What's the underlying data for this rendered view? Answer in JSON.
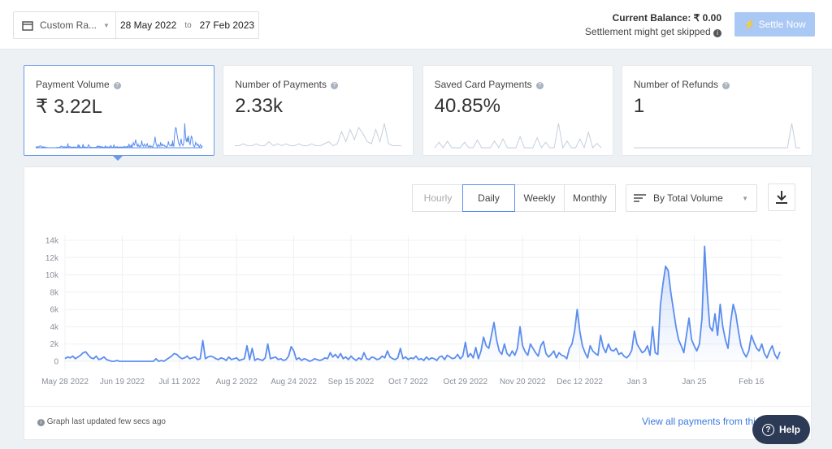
{
  "header": {
    "range_select": "Custom Ra...",
    "from": "28 May 2022",
    "to_word": "to",
    "to": "27 Feb 2023",
    "balance_label": "Current Balance:",
    "balance_value": "₹ 0.00",
    "note": "Settlement might get skipped",
    "button": "Settle Now"
  },
  "cards": [
    {
      "label": "Payment Volume",
      "value": "₹ 3.22L"
    },
    {
      "label": "Number of Payments",
      "value": "2.33k",
      "sparkline": [
        1,
        1,
        2,
        1,
        1,
        2,
        1,
        1,
        3,
        1,
        2,
        1,
        2,
        1,
        1,
        2,
        1,
        1,
        2,
        1,
        1,
        2,
        3,
        1,
        2,
        8,
        3,
        9,
        4,
        10,
        7,
        3,
        2,
        9,
        3,
        12,
        2,
        1,
        1,
        1
      ]
    },
    {
      "label": "Saved Card Payments",
      "value": "40.85%",
      "sparkline": [
        0,
        5,
        0,
        6,
        0,
        0,
        0,
        5,
        0,
        0,
        7,
        0,
        0,
        0,
        6,
        0,
        8,
        0,
        0,
        0,
        10,
        0,
        0,
        0,
        9,
        0,
        5,
        0,
        0,
        22,
        0,
        6,
        0,
        0,
        8,
        0,
        14,
        0,
        4,
        0
      ]
    },
    {
      "label": "Number of Refunds",
      "value": "1",
      "sparkline": [
        0,
        0,
        0,
        0,
        0,
        0,
        0,
        0,
        0,
        0,
        0,
        0,
        0,
        0,
        0,
        0,
        0,
        0,
        0,
        0,
        0,
        0,
        0,
        0,
        0,
        0,
        0,
        0,
        0,
        0,
        0,
        0,
        0,
        0,
        0,
        0,
        0,
        1,
        0,
        0
      ]
    }
  ],
  "toolbar": {
    "granularity": [
      "Hourly",
      "Daily",
      "Weekly",
      "Monthly"
    ],
    "sort": "By Total Volume"
  },
  "chart_data": {
    "type": "line",
    "color": "#5b8def",
    "grid": true,
    "ylim": [
      0,
      14000
    ],
    "yticks": [
      0,
      {
        "value": 2000,
        "label": "2k"
      },
      {
        "value": 4000,
        "label": "4k"
      },
      {
        "value": 6000,
        "label": "6k"
      },
      {
        "value": 8000,
        "label": "8k"
      },
      {
        "value": 10000,
        "label": "10k"
      },
      {
        "value": 12000,
        "label": "12k"
      },
      {
        "value": 14000,
        "label": "14k"
      }
    ],
    "categories": [
      "May 28 2022",
      null,
      null,
      null,
      null,
      null,
      null,
      null,
      null,
      null,
      null,
      null,
      null,
      null,
      null,
      null,
      null,
      null,
      null,
      null,
      null,
      null,
      "Jun 19 2022",
      null,
      null,
      null,
      null,
      null,
      null,
      null,
      null,
      null,
      null,
      null,
      null,
      null,
      null,
      null,
      null,
      null,
      null,
      null,
      null,
      null,
      "Jul 11 2022",
      null,
      null,
      null,
      null,
      null,
      null,
      null,
      null,
      null,
      null,
      null,
      null,
      null,
      null,
      null,
      null,
      null,
      null,
      null,
      null,
      null,
      "Aug 2 2022",
      null,
      null,
      null,
      null,
      null,
      null,
      null,
      null,
      null,
      null,
      null,
      null,
      null,
      null,
      null,
      null,
      null,
      null,
      null,
      null,
      null,
      "Aug 24 2022",
      null,
      null,
      null,
      null,
      null,
      null,
      null,
      null,
      null,
      null,
      null,
      null,
      null,
      null,
      null,
      null,
      null,
      null,
      null,
      null,
      null,
      "Sep 15 2022",
      null,
      null,
      null,
      null,
      null,
      null,
      null,
      null,
      null,
      null,
      null,
      null,
      null,
      null,
      null,
      null,
      null,
      null,
      null,
      null,
      null,
      "Oct 7 2022",
      null,
      null,
      null,
      null,
      null,
      null,
      null,
      null,
      null,
      null,
      null,
      null,
      null,
      null,
      null,
      null,
      null,
      null,
      null,
      null,
      null,
      "Oct 29 2022",
      null,
      null,
      null,
      null,
      null,
      null,
      null,
      null,
      null,
      null,
      null,
      null,
      null,
      null,
      null,
      null,
      null,
      null,
      null,
      null,
      null,
      "Nov 20 2022",
      null,
      null,
      null,
      null,
      null,
      null,
      null,
      null,
      null,
      null,
      null,
      null,
      null,
      null,
      null,
      null,
      null,
      null,
      null,
      null,
      null,
      "Dec 12 2022",
      null,
      null,
      null,
      null,
      null,
      null,
      null,
      null,
      null,
      null,
      null,
      null,
      null,
      null,
      null,
      null,
      null,
      null,
      null,
      null,
      null,
      "Jan 3",
      null,
      null,
      null,
      null,
      null,
      null,
      null,
      null,
      null,
      null,
      null,
      null,
      null,
      null,
      null,
      null,
      null,
      null,
      null,
      null,
      null,
      "Jan 25",
      null,
      null,
      null,
      null,
      null,
      null,
      null,
      null,
      null,
      null,
      null,
      null,
      null,
      null,
      null,
      null,
      null,
      null,
      null,
      null,
      null,
      "Feb 16",
      null,
      null,
      null,
      null,
      null,
      null,
      null,
      null,
      null,
      null,
      null
    ],
    "series": [
      {
        "color": "#5b8def",
        "values": [
          300,
          500,
          400,
          600,
          300,
          500,
          700,
          1000,
          1100,
          700,
          400,
          300,
          600,
          200,
          300,
          500,
          200,
          100,
          0,
          0,
          100,
          0,
          0,
          0,
          0,
          0,
          0,
          0,
          0,
          0,
          0,
          0,
          0,
          0,
          0,
          300,
          0,
          100,
          0,
          200,
          400,
          600,
          900,
          800,
          500,
          300,
          400,
          600,
          300,
          400,
          500,
          200,
          300,
          2400,
          300,
          500,
          600,
          500,
          300,
          200,
          400,
          300,
          100,
          500,
          200,
          300,
          400,
          100,
          200,
          300,
          1800,
          200,
          1500,
          100,
          300,
          200,
          100,
          400,
          2000,
          300,
          400,
          500,
          200,
          300,
          100,
          200,
          600,
          1700,
          1200,
          200,
          400,
          100,
          300,
          200,
          0,
          100,
          300,
          200,
          100,
          200,
          400,
          300,
          1000,
          500,
          800,
          400,
          900,
          300,
          500,
          200,
          600,
          300,
          100,
          400,
          200,
          1000,
          300,
          200,
          500,
          400,
          200,
          300,
          600,
          400,
          1200,
          500,
          300,
          200,
          400,
          1500,
          300,
          500,
          200,
          400,
          300,
          600,
          200,
          300,
          100,
          500,
          200,
          400,
          300,
          100,
          500,
          600,
          200,
          700,
          500,
          300,
          400,
          800,
          300,
          600,
          2200,
          500,
          900,
          400,
          1600,
          300,
          1200,
          2800,
          1800,
          1500,
          3000,
          4500,
          2500,
          1200,
          800,
          2000,
          900,
          600,
          1200,
          700,
          1500,
          4000,
          1800,
          1100,
          700,
          2000,
          1500,
          1000,
          600,
          1800,
          2300,
          900,
          500,
          800,
          1200,
          400,
          1000,
          700,
          600,
          300,
          1500,
          2000,
          3500,
          6000,
          3500,
          1800,
          1000,
          400,
          1800,
          1200,
          900,
          700,
          3000,
          1600,
          1000,
          2000,
          1300,
          1200,
          1500,
          800,
          1000,
          600,
          400,
          700,
          1300,
          3500,
          2000,
          1500,
          1000,
          1200,
          1800,
          700,
          4000,
          1000,
          800,
          6500,
          9000,
          11000,
          10500,
          8000,
          6000,
          4000,
          2500,
          1800,
          1000,
          3000,
          5000,
          2500,
          1800,
          1200,
          2000,
          5000,
          13300,
          8000,
          4000,
          3500,
          5500,
          3000,
          6600,
          4000,
          2500,
          1500,
          4500,
          6600,
          5500,
          3500,
          1800,
          1000,
          500,
          1200,
          3000,
          2200,
          1500,
          1200,
          2000,
          900,
          400,
          1200,
          1800,
          800,
          300,
          1100
        ]
      }
    ]
  },
  "footer": {
    "updated": "Graph last updated few secs ago",
    "link": "View all payments from this",
    "help": "Help"
  }
}
